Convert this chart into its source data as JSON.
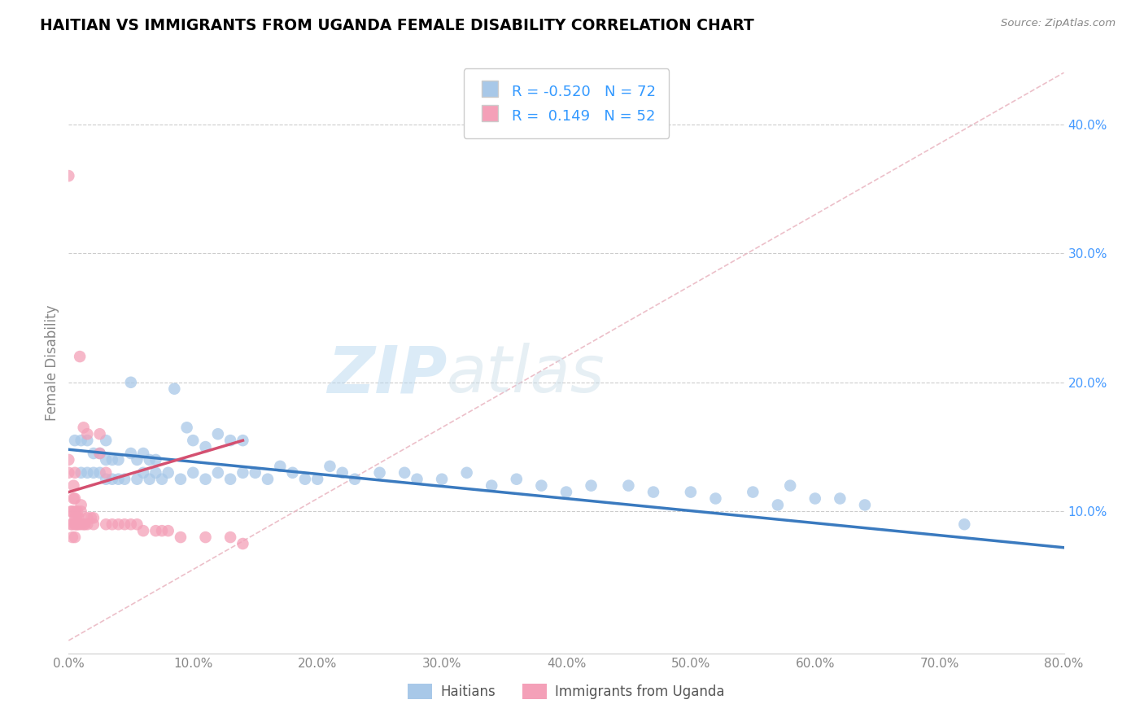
{
  "title": "HAITIAN VS IMMIGRANTS FROM UGANDA FEMALE DISABILITY CORRELATION CHART",
  "source_text": "Source: ZipAtlas.com",
  "ylabel": "Female Disability",
  "xlim": [
    0.0,
    0.8
  ],
  "ylim": [
    -0.01,
    0.44
  ],
  "xticks": [
    0.0,
    0.1,
    0.2,
    0.3,
    0.4,
    0.5,
    0.6,
    0.7,
    0.8
  ],
  "yticks_right": [
    0.1,
    0.2,
    0.3,
    0.4
  ],
  "blue_color": "#a8c8e8",
  "pink_color": "#f4a0b8",
  "blue_line_color": "#3a7abf",
  "pink_line_color": "#d45070",
  "pink_dash_color": "#e8a0b0",
  "legend_blue_label": "R = -0.520   N = 72",
  "legend_pink_label": "R =  0.149   N = 52",
  "watermark_zip": "ZIP",
  "watermark_atlas": "atlas",
  "legend_label_haitians": "Haitians",
  "legend_label_uganda": "Immigrants from Uganda",
  "blue_scatter_x": [
    0.005,
    0.01,
    0.01,
    0.015,
    0.015,
    0.02,
    0.02,
    0.025,
    0.025,
    0.03,
    0.03,
    0.03,
    0.035,
    0.035,
    0.04,
    0.04,
    0.045,
    0.05,
    0.05,
    0.055,
    0.055,
    0.06,
    0.06,
    0.065,
    0.065,
    0.07,
    0.07,
    0.075,
    0.08,
    0.085,
    0.09,
    0.095,
    0.1,
    0.1,
    0.11,
    0.11,
    0.12,
    0.12,
    0.13,
    0.13,
    0.14,
    0.14,
    0.15,
    0.16,
    0.17,
    0.18,
    0.19,
    0.2,
    0.21,
    0.22,
    0.23,
    0.25,
    0.27,
    0.28,
    0.3,
    0.32,
    0.34,
    0.36,
    0.38,
    0.4,
    0.42,
    0.45,
    0.47,
    0.5,
    0.52,
    0.55,
    0.57,
    0.58,
    0.6,
    0.62,
    0.64,
    0.72
  ],
  "blue_scatter_y": [
    0.155,
    0.13,
    0.155,
    0.13,
    0.155,
    0.13,
    0.145,
    0.13,
    0.145,
    0.125,
    0.14,
    0.155,
    0.125,
    0.14,
    0.125,
    0.14,
    0.125,
    0.145,
    0.2,
    0.125,
    0.14,
    0.13,
    0.145,
    0.125,
    0.14,
    0.13,
    0.14,
    0.125,
    0.13,
    0.195,
    0.125,
    0.165,
    0.13,
    0.155,
    0.125,
    0.15,
    0.13,
    0.16,
    0.125,
    0.155,
    0.13,
    0.155,
    0.13,
    0.125,
    0.135,
    0.13,
    0.125,
    0.125,
    0.135,
    0.13,
    0.125,
    0.13,
    0.13,
    0.125,
    0.125,
    0.13,
    0.12,
    0.125,
    0.12,
    0.115,
    0.12,
    0.12,
    0.115,
    0.115,
    0.11,
    0.115,
    0.105,
    0.12,
    0.11,
    0.11,
    0.105,
    0.09
  ],
  "pink_scatter_x": [
    0.0,
    0.0,
    0.0,
    0.002,
    0.002,
    0.003,
    0.003,
    0.003,
    0.004,
    0.004,
    0.005,
    0.005,
    0.005,
    0.005,
    0.005,
    0.005,
    0.006,
    0.006,
    0.007,
    0.007,
    0.008,
    0.008,
    0.009,
    0.01,
    0.01,
    0.01,
    0.012,
    0.012,
    0.013,
    0.015,
    0.015,
    0.015,
    0.018,
    0.02,
    0.02,
    0.025,
    0.025,
    0.03,
    0.03,
    0.035,
    0.04,
    0.045,
    0.05,
    0.055,
    0.06,
    0.07,
    0.075,
    0.08,
    0.09,
    0.11,
    0.13,
    0.14
  ],
  "pink_scatter_y": [
    0.13,
    0.14,
    0.36,
    0.09,
    0.1,
    0.08,
    0.09,
    0.1,
    0.11,
    0.12,
    0.08,
    0.09,
    0.095,
    0.1,
    0.11,
    0.13,
    0.09,
    0.095,
    0.09,
    0.1,
    0.09,
    0.095,
    0.22,
    0.09,
    0.1,
    0.105,
    0.09,
    0.165,
    0.09,
    0.09,
    0.095,
    0.16,
    0.095,
    0.09,
    0.095,
    0.145,
    0.16,
    0.09,
    0.13,
    0.09,
    0.09,
    0.09,
    0.09,
    0.09,
    0.085,
    0.085,
    0.085,
    0.085,
    0.08,
    0.08,
    0.08,
    0.075
  ],
  "blue_line_x0": 0.0,
  "blue_line_x1": 0.8,
  "blue_line_y0": 0.148,
  "blue_line_y1": 0.072,
  "pink_line_x0": 0.0,
  "pink_line_x1": 0.14,
  "pink_line_y0": 0.115,
  "pink_line_y1": 0.155,
  "diag_line_color": "#e8b0bc",
  "grid_color": "#cccccc",
  "tick_label_color_x": "#888888",
  "tick_label_color_y_right": "#4499ff",
  "ylabel_color": "#888888"
}
